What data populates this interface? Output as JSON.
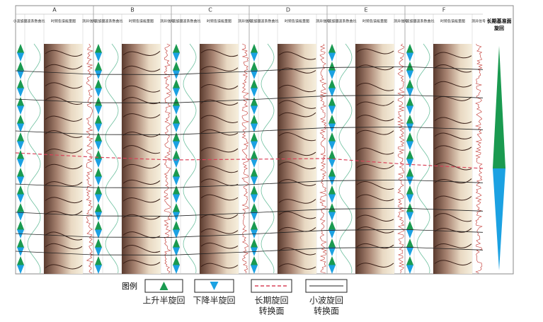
{
  "wells": [
    "A",
    "B",
    "C",
    "D",
    "E",
    "F"
  ],
  "subheaders": [
    "小波旋回",
    "小波系数曲线",
    "时频色谱能量图",
    "测井信号"
  ],
  "right_header": [
    "长期基准面",
    "旋回"
  ],
  "legend": {
    "title": "图例",
    "items": [
      {
        "label": [
          "上升半旋回"
        ]
      },
      {
        "label": [
          "下降半旋回"
        ]
      },
      {
        "label": [
          "长期旋回",
          "转换面"
        ]
      },
      {
        "label": [
          "小波旋回",
          "转换面"
        ]
      }
    ]
  }
}
